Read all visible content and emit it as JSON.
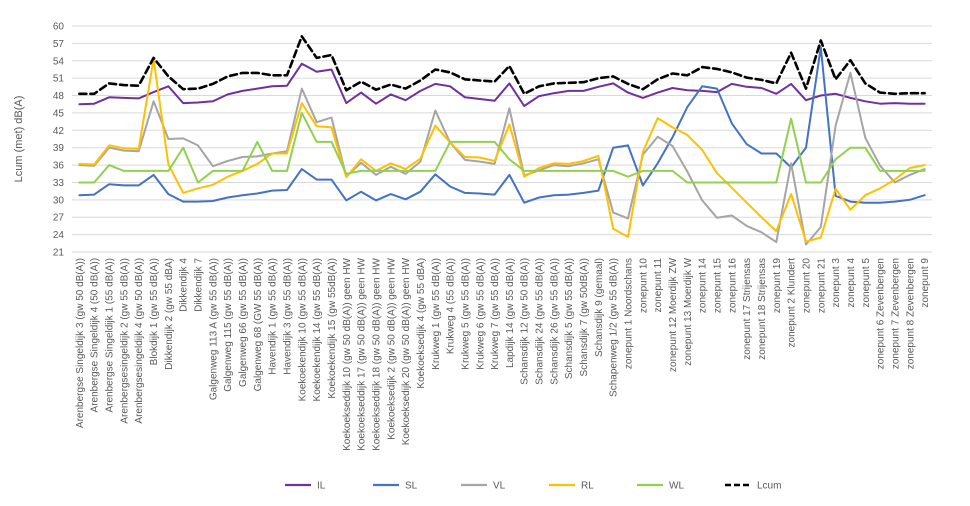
{
  "chart_data": {
    "type": "line",
    "title": "",
    "xlabel": "",
    "ylabel": "Lcum (met) dB(A)",
    "ylim": [
      21,
      60
    ],
    "yticks": [
      21,
      24,
      27,
      30,
      33,
      36,
      39,
      42,
      45,
      48,
      51,
      54,
      57,
      60
    ],
    "grid": true,
    "legend_position": "bottom",
    "categories": [
      "Arenbergse Singeldijk 3 (gw 50 dB(A))",
      "Arenbergse Singeldijk 4  (50 dB(A))",
      "Arenbergse Singeldijk 1 (55 dB(A))",
      "Arenbergsesingeldijk 2 (gw 55 dB(A))",
      "Arenbergsesingeldijk 4 (gw 50 dB(A))",
      "Blokdijk 1 (gw 55 dB(A))",
      "Dikkendijk 2 (gw 55 dBA)",
      "Dikkendijk 4",
      "Dikkendijk 7",
      "Galgenweg 113 A (gw 55 dB(A))",
      "Galgenweg 115 (gw 55 dB(A))",
      "Galgenweg 66 (gw 55 dB(A))",
      "Galgenweg 68 (GW 55 dB(A))",
      "Havendijk 1 (gw 55 dB(A))",
      "Havendijk 3 (gw 55 dB(A))",
      "Koekoekendijk 10 (gw 55 dB(A))",
      "Koekoekendijk 14 (gw 55 dB(A))",
      "Koekoekendijk 15 (gw 55dB(A))",
      "Koekoekseddijk 10 (gw 50 dB(A)) geen HW",
      "Koekoekseddijk 17 (gw 50 dB(A)) geen HW",
      "Koekoekseddijk 18 (gw 50 dB(A)) geen HW",
      "Koekoeksedijk 2 (gw 50 dB(A)) geen HW",
      "Koekoeksedijk 20 (gw 50 dB(A)) geen HW",
      "Koekoeksedijk 4 (gw 55 dBA)",
      "Krukweg 1 (gw 55 dB(A))",
      "Krukweg 4 (55 dB(A))",
      "Krukweg 5 (gw 55 dB(A))",
      "Krukweg 6 (gw 55 dB(A))",
      "Krukweg 7 (gw 55 dB(A))",
      "Lapdijk 14 (gw 55 dB(A))",
      "Schansdijk 12 (gw 50 dB(A))",
      "Schansdijk 24 (gw 55 dB(A))",
      "Schansdijk 26 (gw 55 dB(A))",
      "Schansdijk 5 (gw 55 dB(A))",
      "Schansdijk 7 (gw 50dB(A))",
      "Schansdijk 9 (gemaal)",
      "Schapenweg 1/2 (gw 55 dB(A))",
      "zonepunt 1 Noordschans",
      "zonepunt 10",
      "zonepunt 11",
      "zonepunt 12 Moerdijk ZW",
      "zonepunt 13 Moerdijk W",
      "zonepunt 14",
      "zonepunt 15",
      "zonepunt 16",
      "zonepunt 17 Strijensas",
      "zonepunt 18 Strijensas",
      "zonepunt 19",
      "zonepunt 2 Klundert",
      "zonepunt 20",
      "zonepunt 21",
      "zonepunt 3",
      "zonepunt 4",
      "zonepunt 5",
      "zonepunt 6 Zevenbergen",
      "zonepunt 7 Zevenbergen",
      "zonepunt 8 Zevenbergen",
      "zonepunt 9"
    ],
    "series": [
      {
        "name": "IL",
        "color": "#7030a0",
        "dash": "solid",
        "values": [
          46.5,
          46.6,
          47.7,
          47.6,
          47.5,
          48.6,
          49.6,
          46.7,
          46.8,
          47.0,
          48.2,
          48.8,
          49.2,
          49.6,
          49.7,
          53.5,
          52.1,
          52.5,
          46.7,
          48.5,
          46.6,
          48.2,
          47.2,
          48.8,
          50.0,
          49.6,
          47.7,
          47.4,
          47.1,
          50.1,
          46.2,
          47.9,
          48.4,
          48.8,
          48.8,
          49.5,
          50.1,
          48.5,
          47.6,
          48.5,
          49.3,
          48.9,
          48.8,
          48.6,
          50.0,
          49.5,
          49.3,
          48.3,
          50.0,
          47.2,
          48.0,
          48.3,
          47.6,
          47.0,
          46.6,
          46.7,
          46.6,
          46.6
        ]
      },
      {
        "name": "SL",
        "color": "#4472c4",
        "dash": "solid",
        "values": [
          30.8,
          30.9,
          32.7,
          32.5,
          32.5,
          34.3,
          31.0,
          29.7,
          29.7,
          29.8,
          30.4,
          30.8,
          31.1,
          31.6,
          31.7,
          35.3,
          33.5,
          33.5,
          29.9,
          31.4,
          29.9,
          31.0,
          30.1,
          31.4,
          34.4,
          32.3,
          31.2,
          31.1,
          30.9,
          34.3,
          29.5,
          30.4,
          30.8,
          30.9,
          31.2,
          31.6,
          39.0,
          39.4,
          32.5,
          36.3,
          40.8,
          46.0,
          49.6,
          49.2,
          43.2,
          39.6,
          38.0,
          38.0,
          35.6,
          39.0,
          56.3,
          30.7,
          29.7,
          29.5,
          29.5,
          29.7,
          30.0,
          30.8
        ]
      },
      {
        "name": "VL",
        "color": "#a5a5a5",
        "dash": "solid",
        "values": [
          36.0,
          35.9,
          39.0,
          38.5,
          38.4,
          47.0,
          40.5,
          40.6,
          39.4,
          35.8,
          36.7,
          37.4,
          37.5,
          38.0,
          38.4,
          49.2,
          43.4,
          44.2,
          34.0,
          36.4,
          34.3,
          35.7,
          34.5,
          36.6,
          45.4,
          39.9,
          36.9,
          36.6,
          36.2,
          45.8,
          34.2,
          35.1,
          36.0,
          35.8,
          36.3,
          37.0,
          27.8,
          26.8,
          37.8,
          40.9,
          39.3,
          34.9,
          29.9,
          26.9,
          27.3,
          25.5,
          24.4,
          22.7,
          36.3,
          22.3,
          25.3,
          42.8,
          51.9,
          40.7,
          35.9,
          33.0,
          34.3,
          35.3
        ]
      },
      {
        "name": "RL",
        "color": "#ffc000",
        "dash": "solid",
        "values": [
          36.2,
          36.1,
          39.4,
          38.9,
          38.8,
          54.3,
          36.1,
          31.2,
          32.0,
          32.6,
          34.0,
          35.0,
          36.2,
          38.0,
          38.0,
          46.7,
          42.7,
          42.5,
          33.9,
          37.0,
          35.0,
          36.3,
          35.3,
          37.1,
          42.8,
          39.9,
          37.4,
          37.3,
          36.7,
          43.0,
          34.0,
          35.5,
          36.3,
          36.2,
          36.7,
          37.6,
          25.0,
          23.6,
          38.3,
          44.1,
          42.5,
          41.2,
          38.6,
          34.6,
          32.1,
          29.5,
          27.0,
          24.6,
          31.0,
          22.8,
          23.5,
          31.9,
          28.3,
          30.8,
          32.0,
          33.5,
          35.5,
          36.0
        ]
      },
      {
        "name": "WL",
        "color": "#92d050",
        "dash": "solid",
        "values": [
          33.0,
          33.0,
          36.0,
          35.0,
          35.0,
          35.0,
          35.0,
          39.0,
          33.0,
          35.0,
          35.0,
          35.0,
          40.0,
          35.0,
          35.0,
          45.0,
          40.0,
          40.0,
          34.5,
          35.0,
          35.0,
          35.0,
          35.0,
          35.0,
          35.0,
          40.0,
          40.0,
          40.0,
          40.0,
          37.0,
          35.0,
          35.0,
          35.0,
          35.0,
          35.0,
          35.0,
          35.0,
          34.0,
          35.0,
          35.0,
          35.0,
          33.0,
          33.0,
          33.0,
          33.0,
          33.0,
          33.0,
          33.0,
          44.0,
          33.0,
          33.0,
          37.0,
          39.0,
          39.0,
          35.0,
          35.0,
          35.0,
          35.0
        ]
      },
      {
        "name": "Lcum",
        "color": "#000000",
        "dash": "dashed",
        "values": [
          48.3,
          48.3,
          50.1,
          49.8,
          49.7,
          54.5,
          51.3,
          49.1,
          49.2,
          50.0,
          51.3,
          51.9,
          51.9,
          51.5,
          51.5,
          58.2,
          54.5,
          55.0,
          48.9,
          50.4,
          49.0,
          49.9,
          49.2,
          50.6,
          52.5,
          52.0,
          50.8,
          50.6,
          50.4,
          53.1,
          48.3,
          49.6,
          50.1,
          50.2,
          50.3,
          51.0,
          51.3,
          50.0,
          49.1,
          50.8,
          51.8,
          51.5,
          52.9,
          52.6,
          52.0,
          51.1,
          50.7,
          50.1,
          55.4,
          49.2,
          57.5,
          50.8,
          54.1,
          50.1,
          48.5,
          48.3,
          48.4,
          48.4
        ]
      }
    ]
  }
}
